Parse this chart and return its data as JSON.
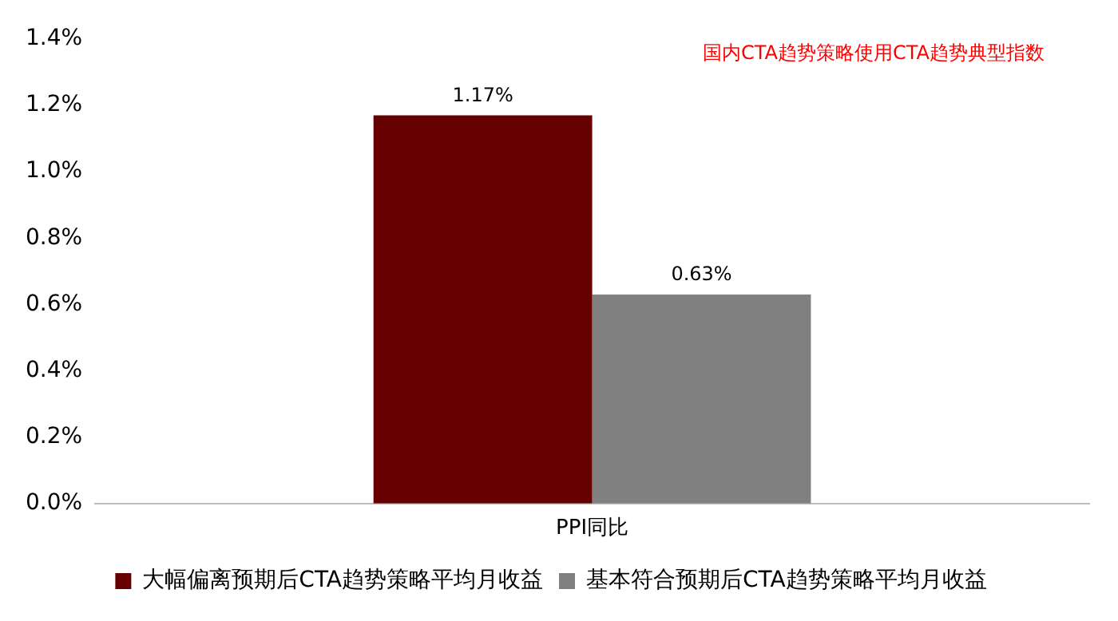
{
  "chart_data": {
    "type": "bar",
    "categories": [
      "PPI同比"
    ],
    "series": [
      {
        "name": "大幅偏离预期后CTA趋势策略平均月收益",
        "color": "#660000",
        "values": [
          1.17
        ],
        "value_labels": [
          "1.17%"
        ]
      },
      {
        "name": "基本符合预期后CTA趋势策略平均月收益",
        "color": "#808080",
        "values": [
          0.63
        ],
        "value_labels": [
          "0.63%"
        ]
      }
    ],
    "ylim": [
      0,
      1.4
    ],
    "yticks": [
      {
        "value": 0,
        "label": "0.0%"
      },
      {
        "value": 0.2,
        "label": "0.2%"
      },
      {
        "value": 0.4,
        "label": "0.4%"
      },
      {
        "value": 0.6,
        "label": "0.6%"
      },
      {
        "value": 0.8,
        "label": "0.8%"
      },
      {
        "value": 1.0,
        "label": "1.0%"
      },
      {
        "value": 1.2,
        "label": "1.2%"
      },
      {
        "value": 1.4,
        "label": "1.4%"
      }
    ],
    "annotations": [
      "国内CTA趋势策略使用CTA趋势典型指数"
    ],
    "grid": false,
    "legend": "bottom"
  }
}
